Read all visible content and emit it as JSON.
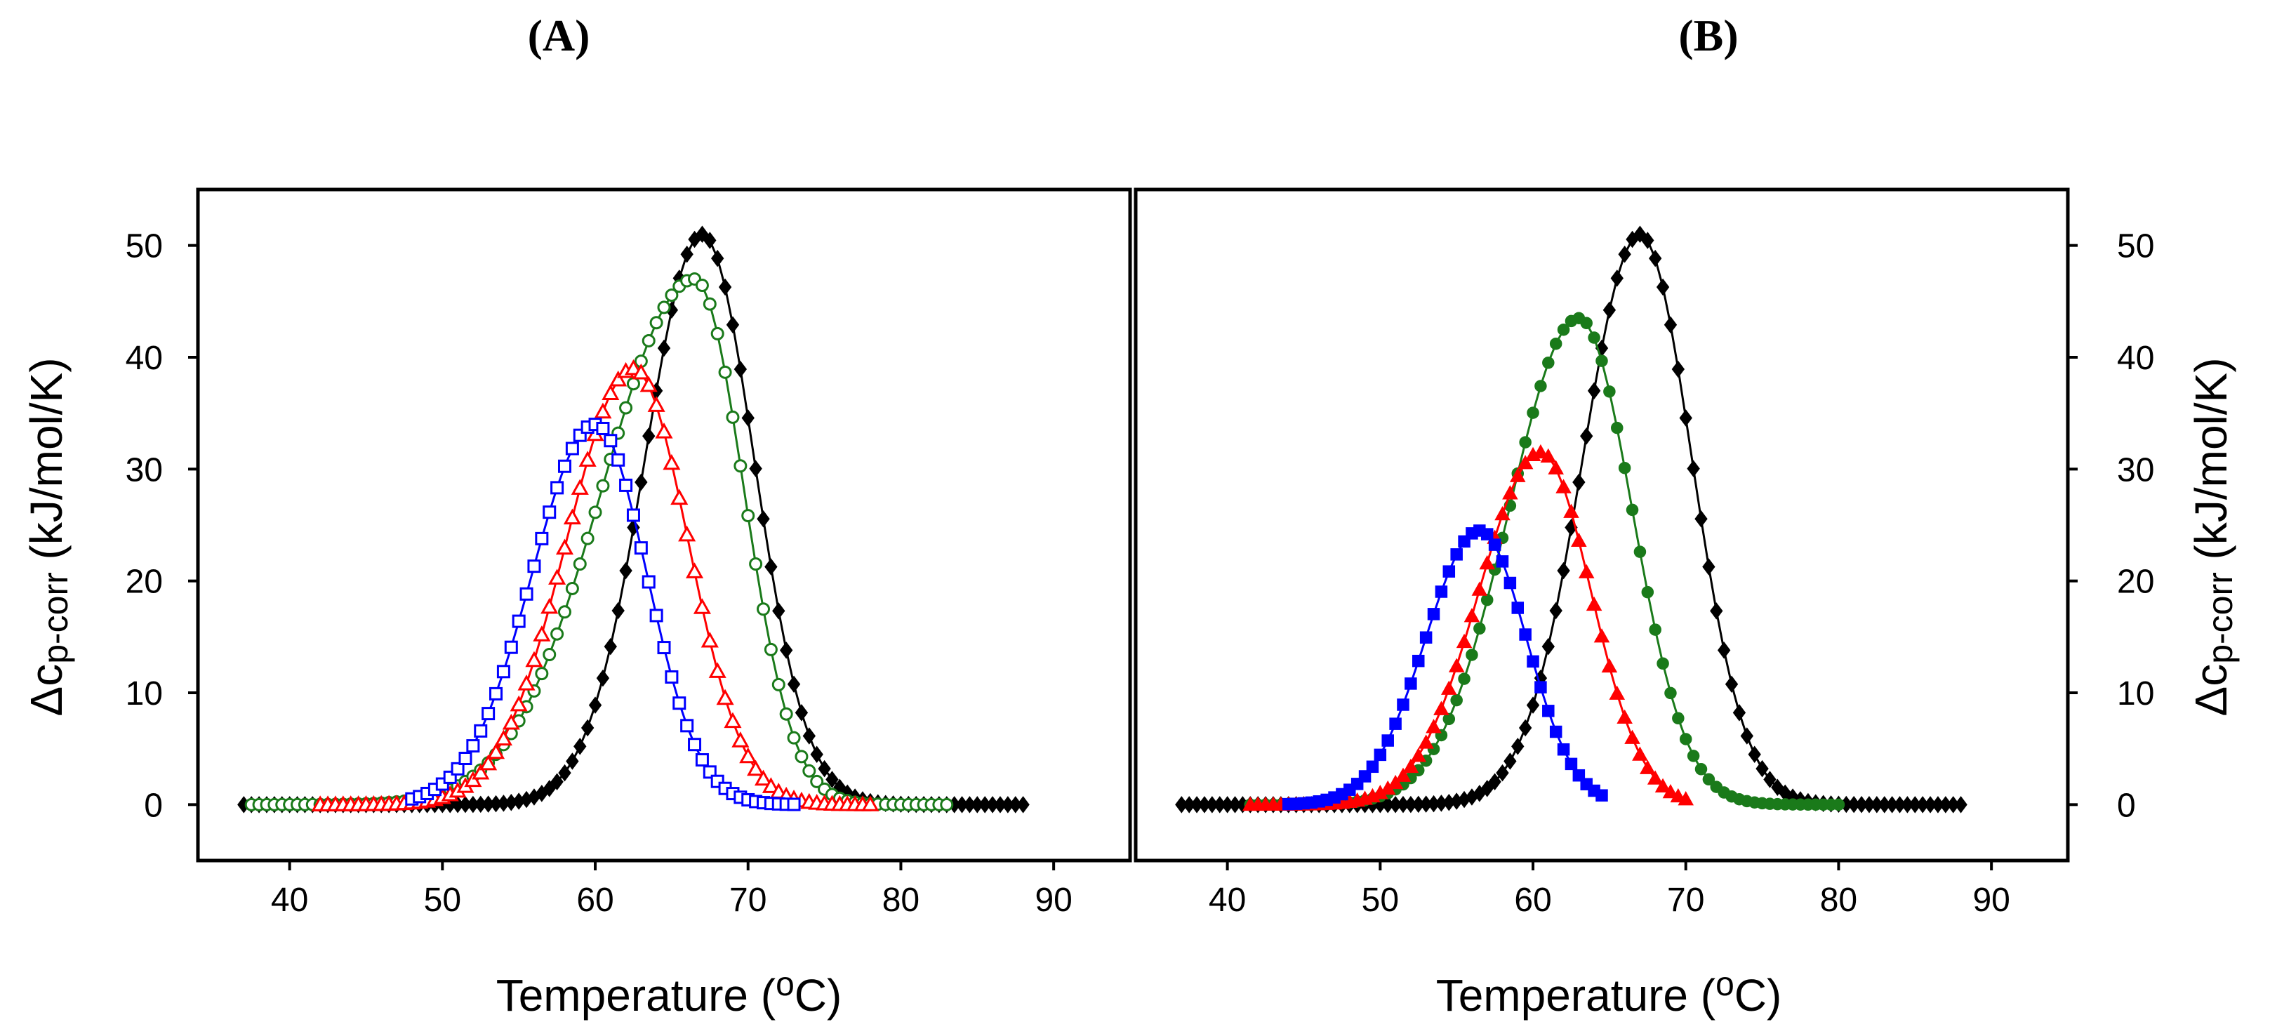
{
  "panel_labels": {
    "a": "(A)",
    "b": "(B)"
  },
  "axis_text": {
    "ylabel_delta": "Δc",
    "ylabel_sub": "p-corr",
    "ylabel_units": " (kJ/mol/K)",
    "xlabel_main": "Temperature (",
    "xlabel_degree": "o",
    "xlabel_unit": "C)"
  },
  "chart_data": [
    {
      "type": "line",
      "panel": "(A)",
      "title": "",
      "xlabel": "Temperature (oC)",
      "ylabel": "Δcp-corr (kJ/mol/K)",
      "xlim": [
        34,
        95
      ],
      "ylim": [
        -5,
        55
      ],
      "xticks": [
        40,
        50,
        60,
        70,
        80,
        90
      ],
      "yticks": [
        0,
        10,
        20,
        30,
        40,
        50
      ],
      "yaxis_side": "left",
      "marker_style": "open",
      "series": [
        {
          "name": "black",
          "color": "#000000",
          "marker": "diamond",
          "filled": true,
          "tm": 67,
          "peak": 51,
          "sigma": 3.5,
          "skew": 0.07,
          "x_range": [
            37,
            88
          ]
        },
        {
          "name": "green",
          "color": "#1a7a1a",
          "marker": "circle",
          "filled": false,
          "tm": 66.5,
          "peak": 47,
          "sigma": 4.0,
          "skew": 0.5,
          "x_range": [
            37.5,
            83
          ]
        },
        {
          "name": "red",
          "color": "#ff0000",
          "marker": "triangle",
          "filled": false,
          "tm": 62.5,
          "peak": 39,
          "sigma": 3.8,
          "skew": 0.15,
          "x_range": [
            42,
            78
          ]
        },
        {
          "name": "blue",
          "color": "#0000ff",
          "marker": "square",
          "filled": false,
          "tm": 60,
          "peak": 34,
          "sigma": 3.6,
          "skew": 0.15,
          "x_range": [
            48,
            73
          ]
        }
      ]
    },
    {
      "type": "line",
      "panel": "(B)",
      "title": "",
      "xlabel": "Temperature (oC)",
      "ylabel": "Δcp-corr (kJ/mol/K)",
      "xlim": [
        34,
        95
      ],
      "ylim": [
        -5,
        55
      ],
      "xticks": [
        40,
        50,
        60,
        70,
        80,
        90
      ],
      "yticks": [
        0,
        10,
        20,
        30,
        40,
        50
      ],
      "yaxis_side": "right",
      "marker_style": "filled",
      "series": [
        {
          "name": "black",
          "color": "#000000",
          "marker": "diamond",
          "filled": true,
          "tm": 67,
          "peak": 51,
          "sigma": 3.5,
          "skew": 0.07,
          "x_range": [
            37,
            88
          ]
        },
        {
          "name": "green",
          "color": "#1a7a1a",
          "marker": "circle",
          "filled": true,
          "tm": 63,
          "peak": 43.5,
          "sigma": 3.8,
          "skew": 0.2,
          "x_range": [
            41.5,
            80
          ]
        },
        {
          "name": "red",
          "color": "#ff0000",
          "marker": "triangle",
          "filled": true,
          "tm": 60.5,
          "peak": 31.5,
          "sigma": 3.5,
          "skew": 0.15,
          "x_range": [
            41.5,
            70
          ]
        },
        {
          "name": "blue",
          "color": "#0000ff",
          "marker": "square",
          "filled": true,
          "tm": 56.5,
          "peak": 24.5,
          "sigma": 3.2,
          "skew": 0.1,
          "x_range": [
            44,
            64.5
          ]
        }
      ]
    }
  ]
}
